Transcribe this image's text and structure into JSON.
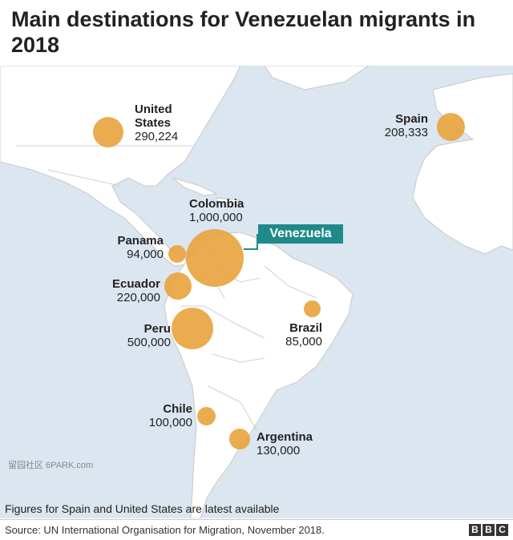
{
  "title": "Main destinations for Venezuelan migrants in 2018",
  "origin_label": "Venezuela",
  "destinations": [
    {
      "name": "United States",
      "value": "290,224"
    },
    {
      "name": "Spain",
      "value": "208,333"
    },
    {
      "name": "Colombia",
      "value": "1,000,000"
    },
    {
      "name": "Panama",
      "value": "94,000"
    },
    {
      "name": "Ecuador",
      "value": "220,000"
    },
    {
      "name": "Peru",
      "value": "500,000"
    },
    {
      "name": "Brazil",
      "value": "85,000"
    },
    {
      "name": "Chile",
      "value": "100,000"
    },
    {
      "name": "Argentina",
      "value": "130,000"
    }
  ],
  "note": "Figures for Spain and United States are latest available",
  "source": "Source: UN International Organisation for Migration, November 2018.",
  "brand": [
    "B",
    "B",
    "C"
  ],
  "watermark": "留园社区 6PARK.com",
  "colors": {
    "bubble": "#e8a33c",
    "land": "#ffffff",
    "sea": "#dce6f0",
    "venezuela": "#1f8a8a"
  }
}
